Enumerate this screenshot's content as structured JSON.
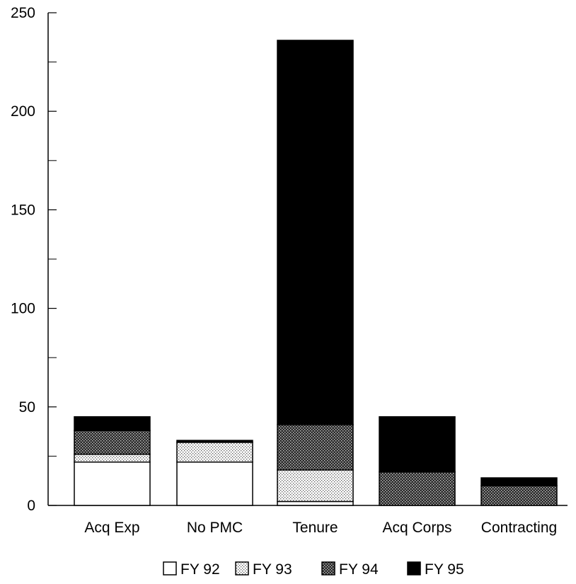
{
  "chart_data": {
    "type": "bar",
    "stacked": true,
    "title": "",
    "xlabel": "",
    "ylabel": "",
    "ylim": [
      0,
      250
    ],
    "yticks": [
      0,
      50,
      100,
      150,
      200,
      250
    ],
    "minor_yticks": [
      25,
      75,
      125,
      175,
      225
    ],
    "grid": false,
    "legend_position": "bottom",
    "categories": [
      "Acq Exp",
      "No PMC",
      "Tenure",
      "Acq Corps",
      "Contracting"
    ],
    "series": [
      {
        "name": "FY 92",
        "values": [
          22,
          22,
          2,
          0,
          0
        ],
        "color": "#ffffff",
        "pattern": "none"
      },
      {
        "name": "FY 93",
        "values": [
          4,
          10,
          16,
          0,
          0
        ],
        "color": "#d9d9d9",
        "pattern": "light-dots"
      },
      {
        "name": "FY 94",
        "values": [
          12,
          0,
          23,
          17,
          10
        ],
        "color": "#8c8c8c",
        "pattern": "dark-dots"
      },
      {
        "name": "FY 95",
        "values": [
          7,
          1,
          195,
          28,
          4
        ],
        "color": "#000000",
        "pattern": "solid"
      }
    ]
  }
}
